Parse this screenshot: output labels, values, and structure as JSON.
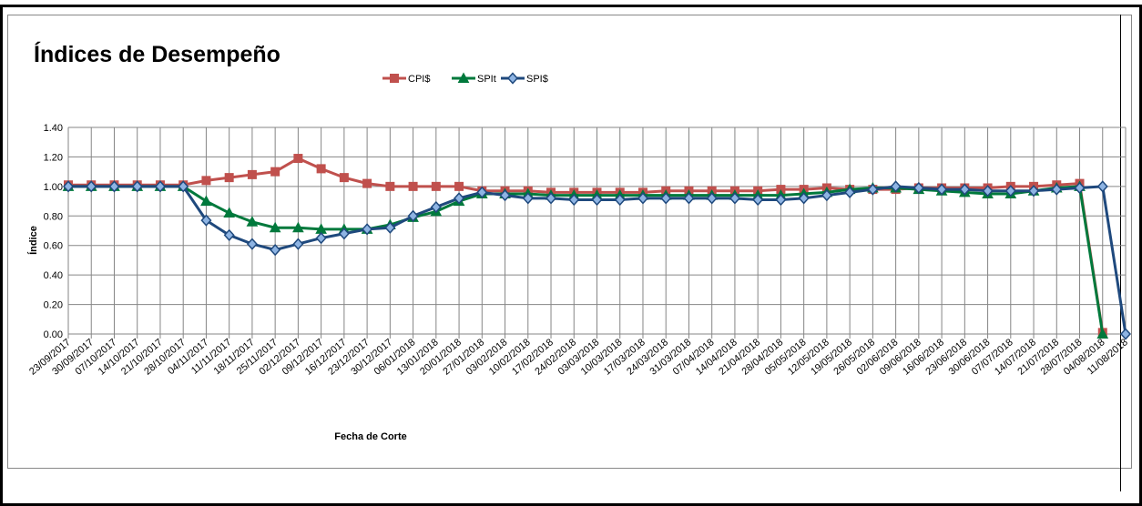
{
  "chart_data": {
    "type": "line",
    "title": "Índices de Desempeño",
    "xlabel": "Fecha de Corte",
    "ylabel": "Índice",
    "ylim": [
      0,
      1.4
    ],
    "yticks": [
      "0.00",
      "0.20",
      "0.40",
      "0.60",
      "0.80",
      "1.00",
      "1.20",
      "1.40"
    ],
    "grid": true,
    "legend_position": "top-center",
    "categories": [
      "23/09/2017",
      "30/09/2017",
      "07/10/2017",
      "14/10/2017",
      "21/10/2017",
      "28/10/2017",
      "04/11/2017",
      "11/11/2017",
      "18/11/2017",
      "25/11/2017",
      "02/12/2017",
      "09/12/2017",
      "16/12/2017",
      "23/12/2017",
      "30/12/2017",
      "06/01/2018",
      "13/01/2018",
      "20/01/2018",
      "27/01/2018",
      "03/02/2018",
      "10/02/2018",
      "17/02/2018",
      "24/02/2018",
      "03/03/2018",
      "10/03/2018",
      "17/03/2018",
      "24/03/2018",
      "31/03/2018",
      "07/04/2018",
      "14/04/2018",
      "21/04/2018",
      "28/04/2018",
      "05/05/2018",
      "12/05/2018",
      "19/05/2018",
      "26/05/2018",
      "02/06/2018",
      "09/06/2018",
      "16/06/2018",
      "23/06/2018",
      "30/06/2018",
      "07/07/2018",
      "14/07/2018",
      "21/07/2018",
      "28/07/2018",
      "04/08/2018",
      "11/08/2018"
    ],
    "series": [
      {
        "name": "CPI$",
        "color": "#C0504D",
        "marker": "square",
        "values": [
          1.01,
          1.01,
          1.01,
          1.01,
          1.01,
          1.01,
          1.04,
          1.06,
          1.08,
          1.1,
          1.19,
          1.12,
          1.06,
          1.02,
          1.0,
          1.0,
          1.0,
          1.0,
          0.97,
          0.97,
          0.97,
          0.96,
          0.96,
          0.96,
          0.96,
          0.96,
          0.97,
          0.97,
          0.97,
          0.97,
          0.97,
          0.98,
          0.98,
          0.99,
          0.98,
          0.98,
          0.98,
          0.99,
          0.99,
          0.99,
          0.99,
          1.0,
          1.0,
          1.01,
          1.02,
          0.01,
          null
        ]
      },
      {
        "name": "SPIt",
        "color": "#00793C",
        "marker": "triangle",
        "values": [
          1.0,
          1.0,
          1.0,
          1.0,
          1.0,
          1.0,
          0.9,
          0.82,
          0.76,
          0.72,
          0.72,
          0.71,
          0.71,
          0.71,
          0.74,
          0.79,
          0.83,
          0.9,
          0.95,
          0.95,
          0.95,
          0.94,
          0.94,
          0.94,
          0.94,
          0.94,
          0.94,
          0.94,
          0.94,
          0.94,
          0.94,
          0.94,
          0.95,
          0.96,
          0.98,
          0.99,
          0.99,
          0.98,
          0.97,
          0.96,
          0.95,
          0.95,
          0.97,
          0.99,
          1.0,
          0.0,
          null
        ]
      },
      {
        "name": "SPI$",
        "color": "#1F497D",
        "marker": "diamond",
        "values": [
          1.0,
          1.0,
          1.0,
          1.0,
          1.0,
          1.0,
          0.77,
          0.67,
          0.61,
          0.57,
          0.61,
          0.65,
          0.68,
          0.71,
          0.72,
          0.8,
          0.86,
          0.92,
          0.96,
          0.94,
          0.92,
          0.92,
          0.91,
          0.91,
          0.91,
          0.92,
          0.92,
          0.92,
          0.92,
          0.92,
          0.91,
          0.91,
          0.92,
          0.94,
          0.96,
          0.98,
          1.0,
          0.99,
          0.98,
          0.98,
          0.97,
          0.97,
          0.97,
          0.98,
          0.99,
          1.0,
          0.0
        ]
      }
    ]
  }
}
